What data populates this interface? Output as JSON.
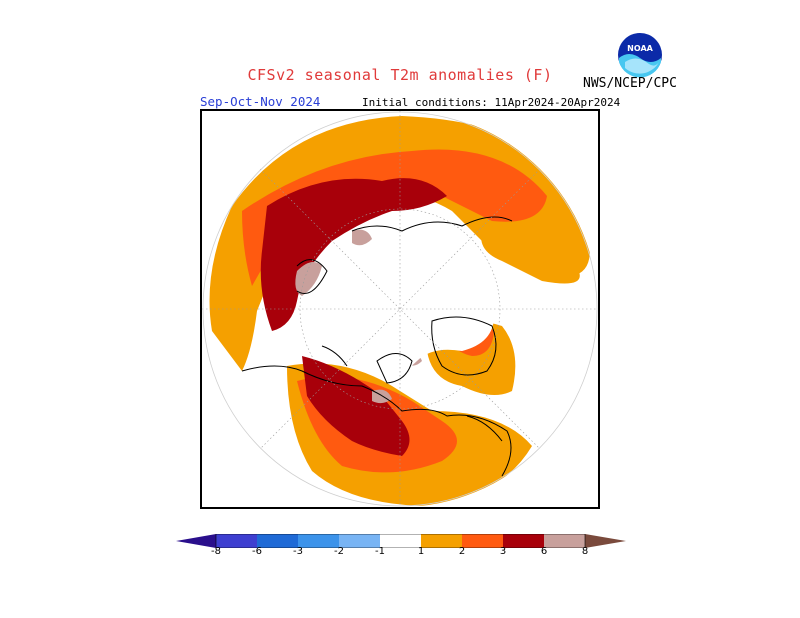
{
  "header": {
    "title": "CFSv2 seasonal T2m anomalies (F)",
    "season": "Sep-Oct-Nov 2024",
    "initial_conditions": "Initial conditions: 11Apr2024-20Apr2024",
    "agency": "NWS/NCEP/CPC",
    "logo_text": "NOAA"
  },
  "map": {
    "projection": "north polar stereographic",
    "variable": "T2m anomaly",
    "units": "F"
  },
  "legend": {
    "ticks": [
      "-8",
      "-6",
      "-3",
      "-2",
      "-1",
      "1",
      "2",
      "3",
      "6",
      "8"
    ],
    "colors": {
      "lt_-8": "#2a0f8c",
      "-8_-6": "#3e3fd0",
      "-6_-3": "#1f6ad6",
      "-3_-2": "#3c93ea",
      "-2_-1": "#78b4f4",
      "-1_1": "#ffffff",
      "1_2": "#f5a000",
      "2_3": "#ff5a10",
      "3_6": "#c81e00",
      "6_8": "#9c0000",
      "gt_8": "#c8a09c",
      "above_8_arrow": "#7a4a3c"
    }
  }
}
